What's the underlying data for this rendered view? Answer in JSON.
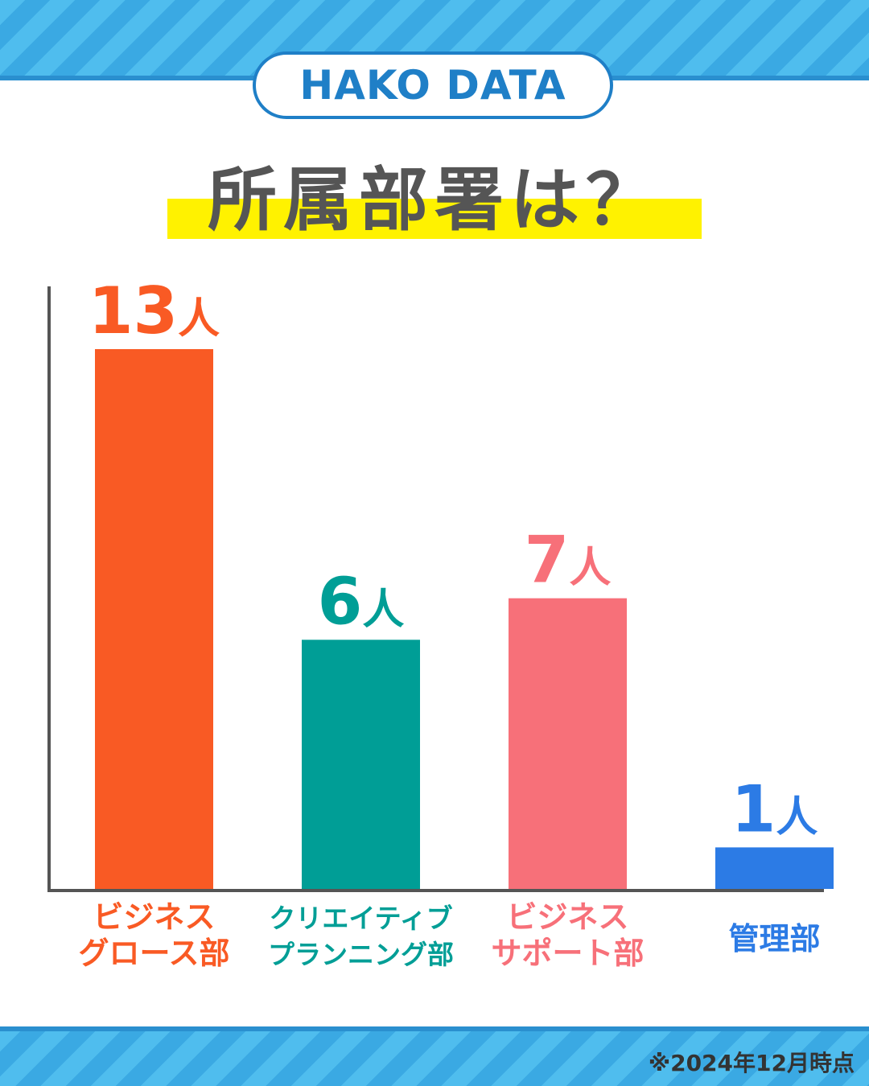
{
  "brand": "HAKO DATA",
  "title": "所属部署は？",
  "footnote": "※2024年12月時点",
  "colors": {
    "stripe_light": "#4fbdee",
    "stripe_dark": "#3aa9e3",
    "brand_blue": "#1f7fc7",
    "title_gray": "#555555",
    "highlight_yellow": "#fff200",
    "axis": "#555555"
  },
  "chart_data": {
    "type": "bar",
    "title": "所属部署は？",
    "categories": [
      "ビジネスグロース部",
      "クリエイティブプランニング部",
      "ビジネスサポート部",
      "管理部"
    ],
    "category_labels": [
      [
        "ビジネス",
        "グロース部"
      ],
      [
        "クリエイティブ",
        "プランニング部"
      ],
      [
        "ビジネス",
        "サポート部"
      ],
      [
        "管理部"
      ]
    ],
    "values": [
      13,
      6,
      7,
      1
    ],
    "unit": "人",
    "value_labels": [
      "13人",
      "6人",
      "7人",
      "1人"
    ],
    "bar_colors": [
      "#f95a24",
      "#009e96",
      "#f77079",
      "#2c7be5"
    ],
    "ylim": [
      0,
      13
    ],
    "grid": false,
    "legend": "none",
    "xlabel": "",
    "ylabel": ""
  }
}
